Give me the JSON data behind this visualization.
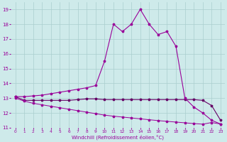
{
  "xlabel": "Windchill (Refroidissement éolien,°C)",
  "background_color": "#ceeaea",
  "grid_color": "#aacece",
  "line_color": "#990099",
  "line_color2": "#660066",
  "x_ticks": [
    0,
    1,
    2,
    3,
    4,
    5,
    6,
    7,
    8,
    9,
    10,
    11,
    12,
    13,
    14,
    15,
    16,
    17,
    18,
    19,
    20,
    21,
    22,
    23
  ],
  "ylim": [
    11.0,
    19.5
  ],
  "xlim": [
    -0.5,
    23.5
  ],
  "yticks": [
    11,
    12,
    13,
    14,
    15,
    16,
    17,
    18,
    19
  ],
  "series_flat_x": [
    0,
    1,
    2,
    3,
    4,
    5,
    6,
    7,
    8,
    9,
    10,
    11,
    12,
    13,
    14,
    15,
    16,
    17,
    18,
    19,
    20,
    21,
    22,
    23
  ],
  "series_flat_y": [
    13.1,
    12.85,
    12.85,
    12.85,
    12.85,
    12.85,
    12.85,
    12.9,
    12.95,
    12.95,
    12.9,
    12.9,
    12.9,
    12.9,
    12.9,
    12.9,
    12.9,
    12.9,
    12.9,
    12.9,
    12.9,
    12.85,
    12.5,
    11.5
  ],
  "series_decline_x": [
    0,
    1,
    2,
    3,
    4,
    5,
    6,
    7,
    8,
    9,
    10,
    11,
    12,
    13,
    14,
    15,
    16,
    17,
    18,
    19,
    20,
    21,
    22,
    23
  ],
  "series_decline_y": [
    13.0,
    12.8,
    12.65,
    12.55,
    12.45,
    12.35,
    12.25,
    12.15,
    12.05,
    11.95,
    11.85,
    11.78,
    11.72,
    11.66,
    11.6,
    11.54,
    11.48,
    11.43,
    11.38,
    11.33,
    11.28,
    11.24,
    11.35,
    11.25
  ],
  "series_rise_x": [
    0,
    1,
    2,
    3,
    4,
    5,
    6,
    7,
    8,
    9,
    10,
    11,
    12,
    13,
    14,
    15,
    16,
    17,
    18,
    19,
    20,
    21,
    22,
    23
  ],
  "series_rise_y": [
    13.1,
    13.1,
    13.15,
    13.2,
    13.3,
    13.4,
    13.5,
    13.6,
    13.7,
    13.85,
    15.5,
    18.0,
    17.5,
    18.0,
    19.0,
    18.0,
    17.3,
    17.5,
    16.5,
    13.0,
    12.4,
    12.0,
    11.5,
    11.25
  ]
}
